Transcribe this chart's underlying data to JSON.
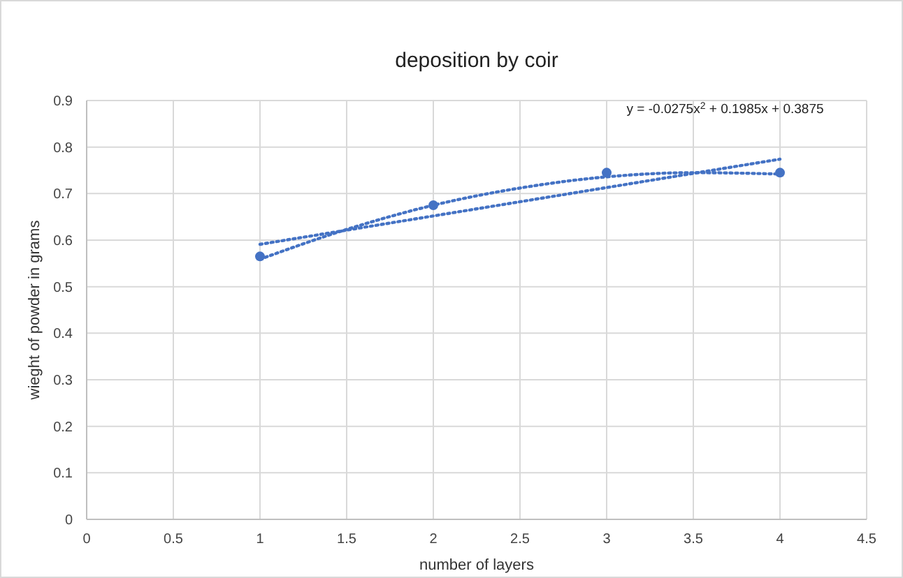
{
  "chart_data": {
    "type": "scatter",
    "title": "deposition by coir",
    "xlabel": "number of layers",
    "ylabel": "wieght of powder in grams",
    "xlim": [
      0,
      4.5
    ],
    "xticks": [
      0,
      0.5,
      1,
      1.5,
      2,
      2.5,
      3,
      3.5,
      4,
      4.5
    ],
    "ylim": [
      0,
      0.9
    ],
    "yticks": [
      0,
      0.1,
      0.2,
      0.3,
      0.4,
      0.5,
      0.6,
      0.7,
      0.8,
      0.9
    ],
    "grid": true,
    "annotations": [
      "y = -0.0275x$^{2}$ + 0.1985x + 0.3875"
    ],
    "series": [
      {
        "color": "#4472c4",
        "marker": "circle",
        "x": [
          1,
          2,
          3,
          4
        ],
        "values": [
          0.565,
          0.675,
          0.745,
          0.745
        ]
      },
      {
        "type": "line",
        "color": "#4472c4",
        "marker": "none",
        "line_style": "dotted",
        "x": [
          1,
          1.5,
          2,
          2.5,
          3,
          3.5,
          4
        ],
        "values": [
          0.559,
          0.623,
          0.675,
          0.712,
          0.736,
          0.745,
          0.742
        ]
      },
      {
        "type": "line",
        "color": "#4472c4",
        "marker": "none",
        "line_style": "dotted",
        "x": [
          1,
          4
        ],
        "values": [
          0.591,
          0.774
        ]
      }
    ]
  }
}
